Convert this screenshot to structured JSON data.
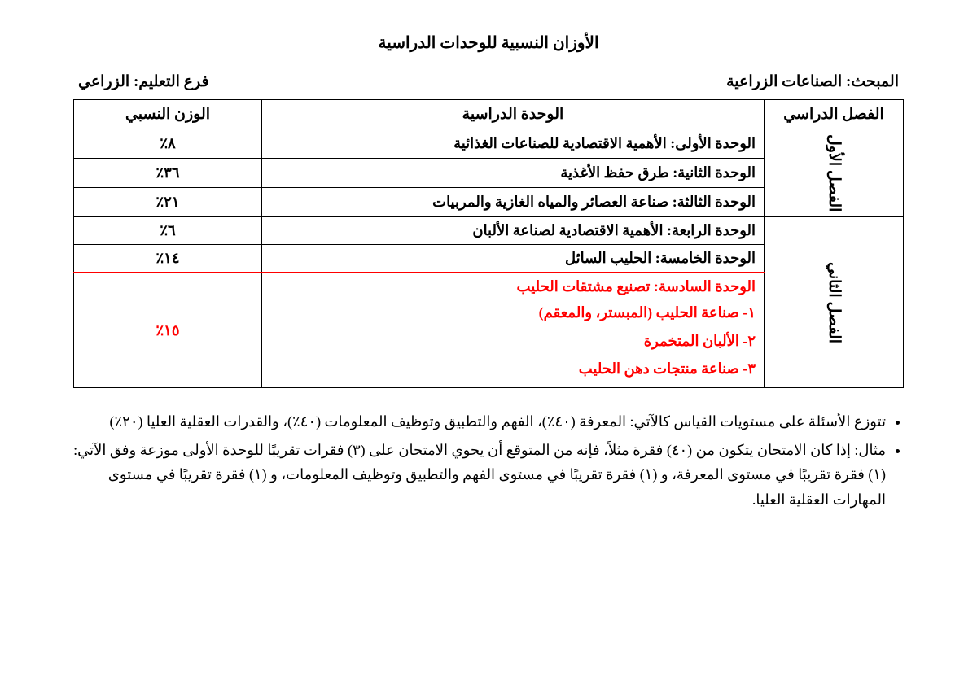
{
  "title": "الأوزان النسبية للوحدات الدراسية",
  "subject": {
    "label": "المبحث:",
    "value": "الصناعات الزراعية"
  },
  "branch": {
    "label": "فرع التعليم:",
    "value": "الزراعي"
  },
  "table": {
    "cols": {
      "semester": "الفصل الدراسي",
      "unit": "الوحدة الدراسية",
      "weight": "الوزن النسبي"
    },
    "sem1": {
      "name": "الفصل الأول",
      "rows": [
        {
          "unit": "الوحدة الأولى: الأهمية الاقتصادية للصناعات الغذائية",
          "weight": "٨٪"
        },
        {
          "unit": "الوحدة الثانية: طرق حفظ الأغذية",
          "weight": "٣٦٪"
        },
        {
          "unit": "الوحدة الثالثة: صناعة العصائر والمياه الغازية والمربيات",
          "weight": "٢١٪"
        }
      ]
    },
    "sem2": {
      "name": "الفصل الثاني",
      "rows": [
        {
          "unit": "الوحدة الرابعة: الأهمية الاقتصادية لصناعة الألبان",
          "weight": "٦٪"
        },
        {
          "unit": "الوحدة الخامسة: الحليب السائل",
          "weight": "١٤٪"
        },
        {
          "unit": "الوحدة السادسة: تصنيع مشتقات الحليب",
          "weight": "١٥٪",
          "subs": [
            "١- صناعة الحليب (المبستر، والمعقم)",
            "٢- الألبان المتخمرة",
            "٣- صناعة منتجات دهن الحليب"
          ]
        }
      ]
    }
  },
  "notes": [
    "تتوزع الأسئلة على مستويات القياس كالآتي: المعرفة (٤٠٪)، الفهم والتطبيق وتوظيف المعلومات (٤٠٪)، والقدرات العقلية العليا (٢٠٪)",
    "مثال: إذا كان الامتحان يتكون من (٤٠) فقرة مثلاً، فإنه من المتوقع أن يحوي الامتحان على (٣) فقرات تقريبًا للوحدة الأولى موزعة وفق الآتي: (١) فقرة تقريبًا في مستوى المعرفة، و (١) فقرة تقريبًا في مستوى الفهم والتطبيق وتوظيف المعلومات، و (١) فقرة تقريبًا في مستوى المهارات العقلية العليا."
  ],
  "colors": {
    "accent_red": "#ff0000",
    "text": "#000000",
    "bg": "#ffffff"
  }
}
